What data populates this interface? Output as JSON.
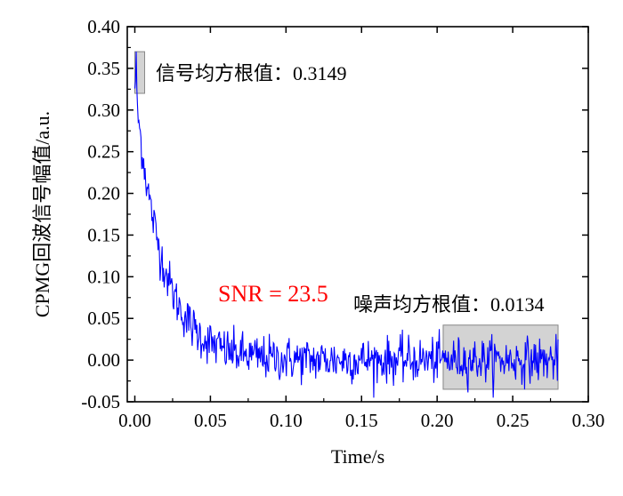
{
  "chart_data": {
    "type": "line",
    "xlabel": "Time/s",
    "ylabel": "CPMG回波信号幅值/a.u.",
    "xlim": [
      -0.005,
      0.3
    ],
    "ylim": [
      -0.05,
      0.4
    ],
    "x_ticks": [
      "0.00",
      "0.05",
      "0.10",
      "0.15",
      "0.20",
      "0.25",
      "0.30"
    ],
    "y_ticks": [
      "-0.05",
      "0.00",
      "0.05",
      "0.10",
      "0.15",
      "0.20",
      "0.25",
      "0.30",
      "0.35",
      "0.40"
    ],
    "grid": false,
    "series_color": "#0000FF",
    "signal_model": {
      "x_start": 0.0,
      "x_end": 0.28,
      "amplitude": 0.33,
      "time_constant_s": 0.018,
      "noise_rms": 0.0134
    },
    "series": [
      {
        "x": [
          0.0,
          0.002,
          0.005,
          0.01,
          0.02,
          0.03,
          0.05,
          0.07,
          0.1,
          0.15,
          0.2,
          0.25,
          0.28
        ],
        "values": [
          0.33,
          0.31,
          0.25,
          0.19,
          0.11,
          0.06,
          0.02,
          0.01,
          0.005,
          0.0,
          0.0,
          0.0,
          0.0
        ]
      }
    ],
    "highlights": [
      {
        "x_range": [
          0.0,
          0.0065
        ],
        "y_range": [
          0.32,
          0.37
        ],
        "fill": "#D3D3D3"
      },
      {
        "x_range": [
          0.204,
          0.28
        ],
        "y_range": [
          -0.035,
          0.042
        ],
        "fill": "#D3D3D3"
      }
    ],
    "annotations": {
      "signal": "信号均方根值：0.3149",
      "noise": "噪声均方根值：0.0134",
      "snr": "SNR = 23.5",
      "snr_color": "#FF0000"
    }
  }
}
